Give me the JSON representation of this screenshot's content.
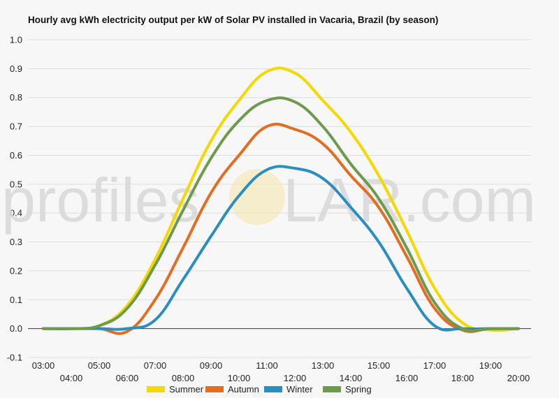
{
  "chart_data": {
    "type": "line",
    "title": "Hourly avg kWh electricity output per kW of Solar PV installed in Vacaria, Brazil (by season)",
    "xlabel": "",
    "ylabel": "",
    "ylim": [
      -0.1,
      1.0
    ],
    "yticks": [
      "-0.1",
      "0.0",
      "0.1",
      "0.2",
      "0.3",
      "0.4",
      "0.5",
      "0.6",
      "0.7",
      "0.8",
      "0.9",
      "1.0"
    ],
    "grid": true,
    "legend_position": "bottom",
    "x": [
      "03:00",
      "04:00",
      "05:00",
      "06:00",
      "07:00",
      "08:00",
      "09:00",
      "10:00",
      "11:00",
      "12:00",
      "13:00",
      "14:00",
      "15:00",
      "16:00",
      "17:00",
      "18:00",
      "19:00",
      "20:00"
    ],
    "series": [
      {
        "name": "Summer",
        "color": "#f5d800",
        "values": [
          0,
          0,
          0.01,
          0.08,
          0.24,
          0.45,
          0.65,
          0.79,
          0.89,
          0.885,
          0.79,
          0.68,
          0.53,
          0.34,
          0.14,
          0.02,
          -0.005,
          0
        ]
      },
      {
        "name": "Autumn",
        "color": "#e36d22",
        "values": [
          0,
          0,
          0,
          -0.01,
          0.1,
          0.28,
          0.47,
          0.6,
          0.7,
          0.69,
          0.64,
          0.53,
          0.42,
          0.25,
          0.07,
          -0.005,
          0,
          0
        ]
      },
      {
        "name": "Winter",
        "color": "#2a8fc0",
        "values": [
          0,
          0,
          0,
          0,
          0.03,
          0.17,
          0.32,
          0.46,
          0.55,
          0.555,
          0.52,
          0.42,
          0.3,
          0.14,
          0.01,
          0,
          0,
          0
        ]
      },
      {
        "name": "Spring",
        "color": "#6d9a4b",
        "values": [
          0,
          0,
          0.01,
          0.07,
          0.22,
          0.41,
          0.59,
          0.72,
          0.79,
          0.785,
          0.7,
          0.57,
          0.45,
          0.28,
          0.09,
          0,
          0,
          0
        ]
      }
    ]
  },
  "watermark": {
    "left": "profiles",
    "right": "LAR.com"
  }
}
